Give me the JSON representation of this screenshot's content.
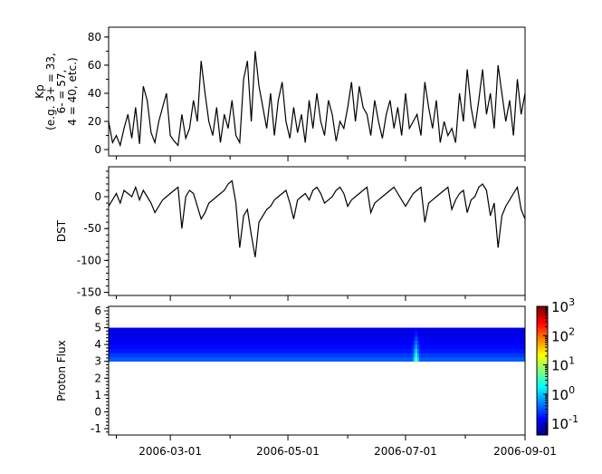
{
  "chart_data": [
    {
      "type": "line",
      "ylabel_lines": [
        "Kp",
        "(e.g. 3+ = 33,",
        "6- = 57,",
        "4 = 40, etc.)"
      ],
      "x_start": "2006-01-28",
      "x_step_days": 2,
      "ylim": [
        -4.5,
        87
      ],
      "yticks": [
        0,
        20,
        40,
        60,
        80
      ],
      "yminor_step": 10,
      "color": "#000000",
      "values": [
        20,
        5,
        10,
        3,
        15,
        25,
        8,
        30,
        4,
        45,
        35,
        12,
        5,
        20,
        30,
        40,
        10,
        6,
        3,
        25,
        8,
        15,
        35,
        20,
        63,
        40,
        20,
        10,
        30,
        5,
        25,
        15,
        35,
        10,
        5,
        50,
        63,
        20,
        70,
        45,
        30,
        15,
        40,
        10,
        35,
        48,
        20,
        8,
        30,
        12,
        25,
        5,
        35,
        15,
        40,
        20,
        10,
        35,
        25,
        6,
        20,
        15,
        30,
        48,
        20,
        45,
        30,
        25,
        10,
        35,
        20,
        8,
        25,
        35,
        15,
        30,
        10,
        40,
        15,
        20,
        25,
        10,
        48,
        30,
        15,
        35,
        5,
        20,
        10,
        15,
        5,
        40,
        20,
        57,
        30,
        15,
        35,
        57,
        25,
        40,
        15,
        60,
        40,
        20,
        35,
        10,
        50,
        25,
        40
      ]
    },
    {
      "type": "line",
      "ylabel_lines": [
        "DST"
      ],
      "x_start": "2006-01-28",
      "x_step_days": 2,
      "ylim": [
        -155,
        47
      ],
      "yticks": [
        0,
        -50,
        -100,
        -150
      ],
      "yminor_step": 10,
      "color": "#000000",
      "values": [
        -15,
        -5,
        5,
        -10,
        10,
        5,
        0,
        15,
        -5,
        10,
        0,
        -10,
        -25,
        -15,
        -5,
        0,
        5,
        10,
        15,
        -50,
        0,
        10,
        5,
        -15,
        -35,
        -25,
        -10,
        -5,
        0,
        5,
        10,
        20,
        25,
        -10,
        -80,
        -30,
        -20,
        -60,
        -95,
        -40,
        -30,
        -20,
        -15,
        -5,
        0,
        5,
        10,
        -10,
        -35,
        -5,
        0,
        5,
        -5,
        10,
        15,
        5,
        -10,
        -5,
        0,
        10,
        15,
        5,
        -15,
        -5,
        0,
        5,
        10,
        15,
        -25,
        -10,
        -5,
        0,
        5,
        10,
        15,
        5,
        -5,
        -15,
        -5,
        5,
        10,
        15,
        -40,
        -10,
        -5,
        0,
        5,
        10,
        15,
        -20,
        -5,
        5,
        10,
        -25,
        -5,
        0,
        15,
        20,
        10,
        -30,
        -10,
        -80,
        -30,
        -15,
        -5,
        5,
        15,
        -20,
        -35
      ]
    },
    {
      "type": "heatmap",
      "ylabel_lines": [
        "Proton Flux"
      ],
      "x_start": "2006-01-28",
      "x_end": "2006-09-01",
      "ylim": [
        -1.38,
        6.27
      ],
      "yticks": [
        -1,
        0,
        1,
        2,
        3,
        4,
        5,
        6
      ],
      "y_bins": [
        3.0,
        3.25,
        3.5,
        3.75,
        4.0,
        4.25,
        4.5,
        4.75,
        5.0
      ],
      "background_flux": [
        0.35,
        0.25,
        0.18,
        0.15,
        0.13,
        0.12,
        0.11,
        0.11
      ],
      "event": {
        "date": "2006-07-06",
        "flux": [
          6,
          3,
          1.5,
          0.8,
          0.5,
          0.3,
          0.2,
          0.15
        ]
      },
      "colorbar": {
        "scale": "log",
        "range": [
          0.04,
          1000
        ],
        "colormap": "jet",
        "ticks": [
          {
            "base": "10",
            "exp": "3",
            "value": 1000
          },
          {
            "base": "10",
            "exp": "2",
            "value": 100
          },
          {
            "base": "10",
            "exp": "1",
            "value": 10
          },
          {
            "base": "10",
            "exp": "0",
            "value": 1
          },
          {
            "base": "10",
            "exp": "-1",
            "value": 0.1
          }
        ]
      }
    }
  ],
  "x_axis": {
    "range": [
      "2006-01-28",
      "2006-09-01"
    ],
    "major_ticks": [
      "2006-03-01",
      "2006-05-01",
      "2006-07-01",
      "2006-09-01"
    ],
    "minor_ticks": [
      "2006-02-01",
      "2006-04-01",
      "2006-06-01",
      "2006-08-01"
    ]
  }
}
